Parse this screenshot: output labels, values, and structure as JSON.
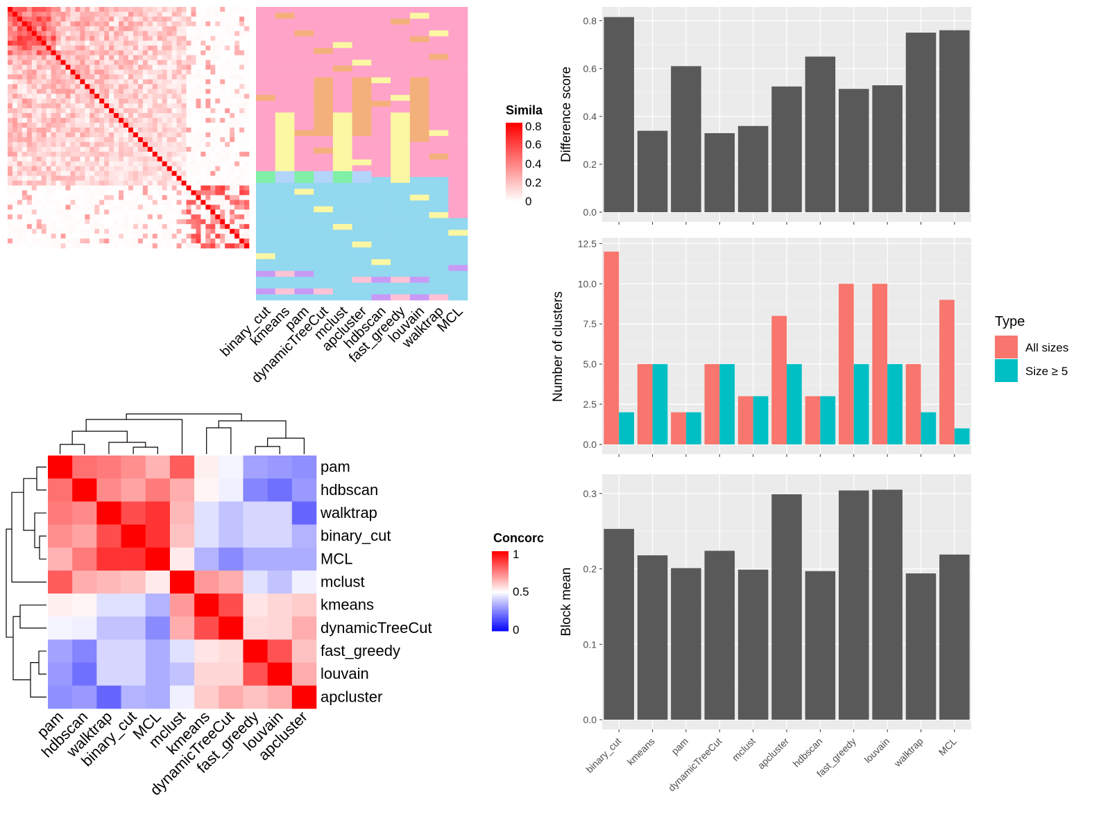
{
  "colors": {
    "bar_fill": "#595959",
    "panel_bg": "#ebebeb",
    "grid_major": "#ffffff",
    "all_sizes": "#f8766d",
    "size_ge5": "#00bfc4",
    "sim_high": "#ff0000",
    "sim_low": "#ffffff",
    "conc_high": "#ff0000",
    "conc_mid": "#ffffff",
    "conc_low": "#0000ff"
  },
  "methods": [
    "binary_cut",
    "kmeans",
    "pam",
    "dynamicTreeCut",
    "mclust",
    "apcluster",
    "hdbscan",
    "fast_greedy",
    "louvain",
    "walktrap",
    "MCL"
  ],
  "similarity_legend": {
    "title": "Simila",
    "ticks": [
      "0.8",
      "0.6",
      "0.4",
      "0.2",
      "0"
    ]
  },
  "concordance_legend": {
    "title": "Concorc",
    "ticks": [
      "1",
      "0.5",
      "0"
    ]
  },
  "concordance_heatmap": {
    "order": [
      "pam",
      "hdbscan",
      "walktrap",
      "binary_cut",
      "MCL",
      "mclust",
      "kmeans",
      "dynamicTreeCut",
      "fast_greedy",
      "louvain",
      "apcluster"
    ],
    "values": [
      [
        1.0,
        0.78,
        0.76,
        0.72,
        0.65,
        0.82,
        0.53,
        0.48,
        0.32,
        0.3,
        0.28
      ],
      [
        0.78,
        1.0,
        0.73,
        0.68,
        0.76,
        0.66,
        0.52,
        0.47,
        0.26,
        0.22,
        0.3
      ],
      [
        0.76,
        0.73,
        1.0,
        0.85,
        0.9,
        0.64,
        0.44,
        0.38,
        0.42,
        0.42,
        0.2
      ],
      [
        0.72,
        0.68,
        0.85,
        1.0,
        0.9,
        0.62,
        0.44,
        0.38,
        0.42,
        0.42,
        0.35
      ],
      [
        0.65,
        0.76,
        0.9,
        0.9,
        1.0,
        0.54,
        0.35,
        0.27,
        0.34,
        0.34,
        0.34
      ],
      [
        0.82,
        0.66,
        0.64,
        0.62,
        0.54,
        1.0,
        0.7,
        0.66,
        0.44,
        0.38,
        0.47
      ],
      [
        0.53,
        0.52,
        0.44,
        0.44,
        0.35,
        0.7,
        1.0,
        0.85,
        0.55,
        0.58,
        0.6
      ],
      [
        0.48,
        0.47,
        0.38,
        0.38,
        0.27,
        0.66,
        0.85,
        1.0,
        0.57,
        0.58,
        0.66
      ],
      [
        0.32,
        0.26,
        0.42,
        0.42,
        0.34,
        0.44,
        0.55,
        0.57,
        1.0,
        0.84,
        0.62
      ],
      [
        0.3,
        0.22,
        0.42,
        0.42,
        0.34,
        0.38,
        0.58,
        0.58,
        0.84,
        1.0,
        0.66
      ],
      [
        0.28,
        0.3,
        0.2,
        0.35,
        0.34,
        0.47,
        0.6,
        0.66,
        0.62,
        0.66,
        1.0
      ]
    ]
  },
  "chart_data": [
    {
      "type": "bar",
      "title": "",
      "xlabel": "",
      "ylabel": "Difference score",
      "categories": [
        "binary_cut",
        "kmeans",
        "pam",
        "dynamicTreeCut",
        "mclust",
        "apcluster",
        "hdbscan",
        "fast_greedy",
        "louvain",
        "walktrap",
        "MCL"
      ],
      "values": [
        0.815,
        0.34,
        0.61,
        0.33,
        0.36,
        0.525,
        0.65,
        0.515,
        0.53,
        0.75,
        0.76
      ],
      "ylim": [
        0,
        0.84
      ],
      "yticks": [
        0.0,
        0.2,
        0.4,
        0.6,
        0.8
      ],
      "ytick_labels": [
        "0.0",
        "0.2",
        "0.4",
        "0.6",
        "0.8"
      ],
      "grid": true
    },
    {
      "type": "bar",
      "title": "",
      "xlabel": "",
      "ylabel": "Number of clusters",
      "categories": [
        "binary_cut",
        "kmeans",
        "pam",
        "dynamicTreeCut",
        "mclust",
        "apcluster",
        "hdbscan",
        "fast_greedy",
        "louvain",
        "walktrap",
        "MCL"
      ],
      "series": [
        {
          "name": "All sizes",
          "values": [
            12,
            5,
            2,
            5,
            3,
            8,
            3,
            10,
            10,
            5,
            9
          ]
        },
        {
          "name": "Size ≥ 5",
          "values": [
            2,
            5,
            2,
            5,
            3,
            5,
            3,
            5,
            5,
            2,
            1
          ]
        }
      ],
      "ylim": [
        0,
        12.6
      ],
      "yticks": [
        0,
        2.5,
        5,
        7.5,
        10,
        12.5
      ],
      "ytick_labels": [
        "0.0",
        "2.5",
        "5.0",
        "7.5",
        "10.0",
        "12.5"
      ],
      "legend": {
        "title": "Type",
        "position": "right"
      },
      "grid": true
    },
    {
      "type": "bar",
      "title": "",
      "xlabel": "",
      "ylabel": "Block mean",
      "categories": [
        "binary_cut",
        "kmeans",
        "pam",
        "dynamicTreeCut",
        "mclust",
        "apcluster",
        "hdbscan",
        "fast_greedy",
        "louvain",
        "walktrap",
        "MCL"
      ],
      "values": [
        0.253,
        0.218,
        0.201,
        0.224,
        0.199,
        0.299,
        0.197,
        0.304,
        0.305,
        0.194,
        0.219
      ],
      "ylim": [
        0,
        0.32
      ],
      "yticks": [
        0.0,
        0.1,
        0.2,
        0.3
      ],
      "ytick_labels": [
        "0.0",
        "0.1",
        "0.2",
        "0.3"
      ],
      "grid": true
    }
  ]
}
